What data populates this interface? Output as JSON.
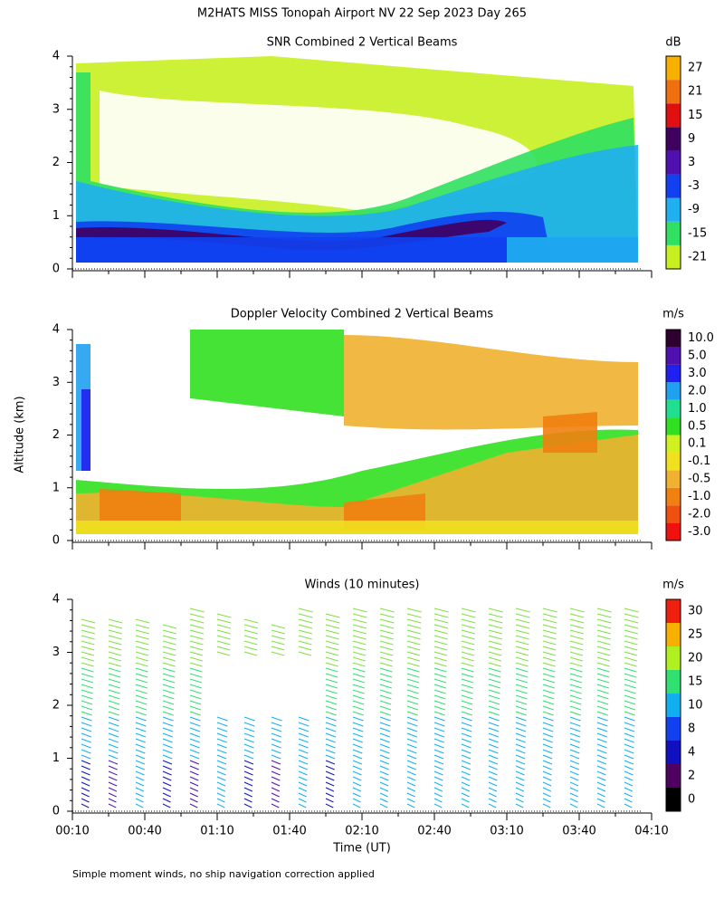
{
  "title": "M2HATS MISS Tonopah Airport NV  22 Sep 2023 Day 265",
  "y_axis_label": "Altitude (km)",
  "x_axis_label": "Time (UT)",
  "footnote": "Simple moment winds, no ship navigation correction applied",
  "y_ticks": [
    0,
    1,
    2,
    3,
    4
  ],
  "x_ticks": [
    "00:10",
    "00:40",
    "01:10",
    "01:40",
    "02:10",
    "02:40",
    "03:10",
    "03:40",
    "04:10"
  ],
  "panels": [
    {
      "title": "SNR Combined 2 Vertical Beams",
      "unit": "dB",
      "colorbar": {
        "labels": [
          -21,
          -15,
          -9,
          -3,
          3,
          9,
          15,
          21,
          27
        ],
        "colors": [
          "#c8f020",
          "#30e060",
          "#20b0f0",
          "#1040f0",
          "#5010b0",
          "#400060",
          "#e01010",
          "#f07010",
          "#f8b000"
        ]
      }
    },
    {
      "title": "Doppler Velocity Combined 2 Vertical Beams",
      "unit": "m/s",
      "colorbar": {
        "labels": [
          {
            "value": -3,
            "label": "-3.0"
          },
          {
            "value": -2,
            "label": "-2.0"
          },
          {
            "value": -1,
            "label": "-1.0"
          },
          -0.5,
          -0.1,
          0.1,
          0.5,
          {
            "value": 1,
            "label": "1.0"
          },
          {
            "value": 2,
            "label": "2.0"
          },
          {
            "value": 3,
            "label": "3.0"
          },
          {
            "value": 5,
            "label": "5.0"
          },
          {
            "value": 10,
            "label": "10.0"
          }
        ],
        "colors": [
          "#f01010",
          "#f05010",
          "#f08010",
          "#f0b030",
          "#f0e020",
          "#d0f020",
          "#30e020",
          "#20e090",
          "#20a0f0",
          "#2020f0",
          "#5010b0",
          "#300030"
        ]
      }
    },
    {
      "title": "Winds (10 minutes)",
      "unit": "m/s",
      "colorbar": {
        "labels": [
          0,
          2,
          4,
          8,
          10,
          15,
          20,
          25,
          30
        ],
        "colors": [
          "#000000",
          "#500060",
          "#1010c0",
          "#1040f0",
          "#10b0f0",
          "#30e070",
          "#b0f020",
          "#f8b000",
          "#f02010"
        ]
      }
    }
  ]
}
